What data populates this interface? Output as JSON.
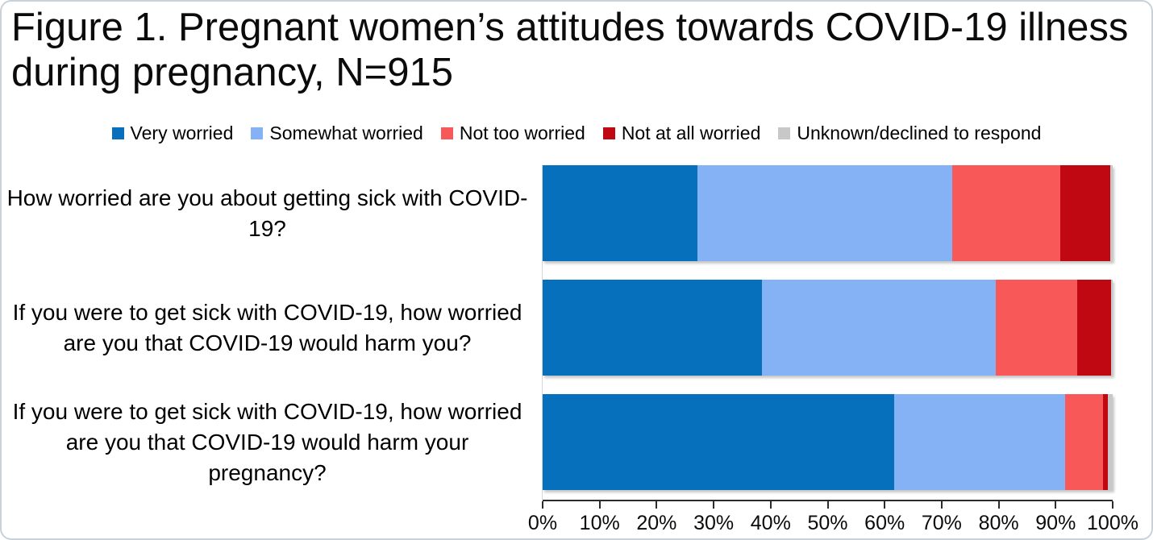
{
  "figure": {
    "title": "Figure 1. Pregnant women’s attitudes towards COVID-19 illness during pregnancy, N=915",
    "sample_size_label": "N=915"
  },
  "legend": {
    "items": [
      {
        "label": "Very worried",
        "color": "#0670bd"
      },
      {
        "label": "Somewhat worried",
        "color": "#85b1f5"
      },
      {
        "label": "Not too worried",
        "color": "#f85858"
      },
      {
        "label": "Not at all worried",
        "color": "#bf0811"
      },
      {
        "label": "Unknown/declined to respond",
        "color": "#c8c8c8"
      }
    ]
  },
  "chart_data": {
    "type": "bar",
    "orientation": "horizontal",
    "stacked": true,
    "title": "Figure 1. Pregnant women’s attitudes towards COVID-19 illness during pregnancy, N=915",
    "categories": [
      "How worried are you about getting sick with COVID-19?",
      "If you were to get sick with COVID-19, how worried are you that COVID-19 would harm you?",
      "If you were to get sick with COVID-19, how worried are you that COVID-19 would harm your pregnancy?"
    ],
    "series": [
      {
        "name": "Very worried",
        "color": "#0670bd",
        "values": [
          27.2,
          38.5,
          61.7
        ]
      },
      {
        "name": "Somewhat worried",
        "color": "#85b1f5",
        "values": [
          44.7,
          41.0,
          30.0
        ]
      },
      {
        "name": "Not too worried",
        "color": "#f85858",
        "values": [
          18.9,
          14.3,
          6.6
        ]
      },
      {
        "name": "Not at all worried",
        "color": "#bf0811",
        "values": [
          8.8,
          5.9,
          0.9
        ]
      },
      {
        "name": "Unknown/declined to respond",
        "color": "#c8c8c8",
        "values": [
          0.4,
          0.3,
          0.8
        ]
      }
    ],
    "xlabel": "",
    "ylabel": "",
    "xlim": [
      0,
      100
    ],
    "x_tick_labels": [
      "0%",
      "10%",
      "20%",
      "30%",
      "40%",
      "50%",
      "60%",
      "70%",
      "80%",
      "90%",
      "100%"
    ],
    "grid": false,
    "legend_position": "top",
    "value_unit": "percent"
  }
}
